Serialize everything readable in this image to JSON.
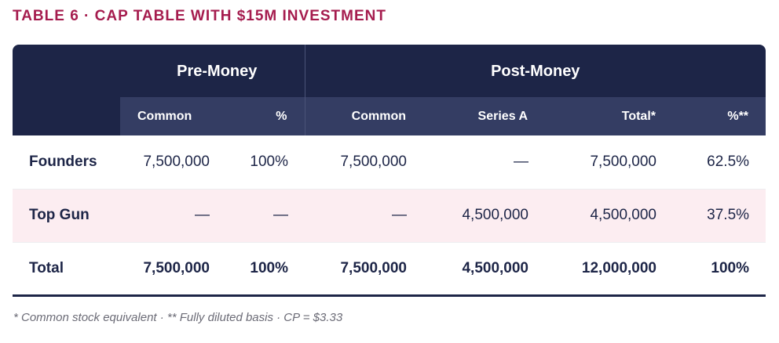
{
  "title": "TABLE 6 · CAP TABLE WITH $15M INVESTMENT",
  "table": {
    "group_headers": {
      "pre": "Pre-Money",
      "post": "Post-Money"
    },
    "columns": [
      "Common",
      "%",
      "Common",
      "Series A",
      "Total*",
      "%**"
    ],
    "rows": [
      {
        "label": "Founders",
        "values": [
          "7,500,000",
          "100%",
          "7,500,000",
          "—",
          "7,500,000",
          "62.5%"
        ]
      },
      {
        "label": "Top Gun",
        "values": [
          "—",
          "—",
          "—",
          "4,500,000",
          "4,500,000",
          "37.5%"
        ]
      },
      {
        "label": "Total",
        "values": [
          "7,500,000",
          "100%",
          "7,500,000",
          "4,500,000",
          "12,000,000",
          "100%"
        ]
      }
    ]
  },
  "footnote": "* Common stock equivalent · ** Fully diluted basis · CP = $3.33",
  "colors": {
    "title": "#a51c4e",
    "header_dark": "#1d2547",
    "header_sub": "#343d63",
    "row_shade": "#fcedf1"
  }
}
